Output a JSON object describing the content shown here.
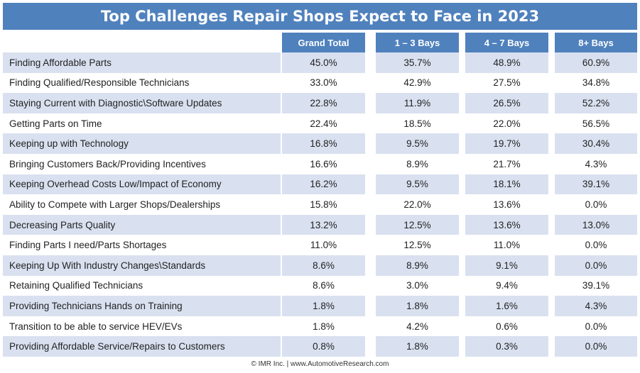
{
  "chart_data": {
    "type": "table",
    "title": "Top Challenges Repair Shops Expect to Face in 2023",
    "columns": [
      "",
      "Grand Total",
      "1 – 3 Bays",
      "4 – 7 Bays",
      "8+ Bays"
    ],
    "rows": [
      {
        "label": "Finding Affordable Parts",
        "values": [
          "45.0%",
          "35.7%",
          "48.9%",
          "60.9%"
        ]
      },
      {
        "label": "Finding Qualified/Responsible Technicians",
        "values": [
          "33.0%",
          "42.9%",
          "27.5%",
          "34.8%"
        ]
      },
      {
        "label": "Staying Current with Diagnostic\\Software Updates",
        "values": [
          "22.8%",
          "11.9%",
          "26.5%",
          "52.2%"
        ]
      },
      {
        "label": "Getting Parts on Time",
        "values": [
          "22.4%",
          "18.5%",
          "22.0%",
          "56.5%"
        ]
      },
      {
        "label": "Keeping up with Technology",
        "values": [
          "16.8%",
          "9.5%",
          "19.7%",
          "30.4%"
        ]
      },
      {
        "label": "Bringing Customers Back/Providing Incentives",
        "values": [
          "16.6%",
          "8.9%",
          "21.7%",
          "4.3%"
        ]
      },
      {
        "label": "Keeping Overhead Costs Low/Impact of Economy",
        "values": [
          "16.2%",
          "9.5%",
          "18.1%",
          "39.1%"
        ]
      },
      {
        "label": "Ability to Compete with Larger Shops/Dealerships",
        "values": [
          "15.8%",
          "22.0%",
          "13.6%",
          "0.0%"
        ]
      },
      {
        "label": "Decreasing Parts Quality",
        "values": [
          "13.2%",
          "12.5%",
          "13.6%",
          "13.0%"
        ]
      },
      {
        "label": "Finding Parts I need/Parts Shortages",
        "values": [
          "11.0%",
          "12.5%",
          "11.0%",
          "0.0%"
        ]
      },
      {
        "label": "Keeping Up With Industry Changes\\Standards",
        "values": [
          "8.6%",
          "8.9%",
          "9.1%",
          "0.0%"
        ]
      },
      {
        "label": "Retaining Qualified Technicians",
        "values": [
          "8.6%",
          "3.0%",
          "9.4%",
          "39.1%"
        ]
      },
      {
        "label": "Providing Technicians Hands on Training",
        "values": [
          "1.8%",
          "1.8%",
          "1.6%",
          "4.3%"
        ]
      },
      {
        "label": "Transition to be able to service HEV/EVs",
        "values": [
          "1.8%",
          "4.2%",
          "0.6%",
          "0.0%"
        ]
      },
      {
        "label": "Providing Affordable Service/Repairs to Customers",
        "values": [
          "0.8%",
          "1.8%",
          "0.3%",
          "0.0%"
        ]
      }
    ],
    "footer": "© IMR Inc. | www.AutomotiveResearch.com"
  },
  "colors": {
    "header_bg": "#4f81bd",
    "band_bg": "#d9e1f0",
    "text": "#222222"
  }
}
